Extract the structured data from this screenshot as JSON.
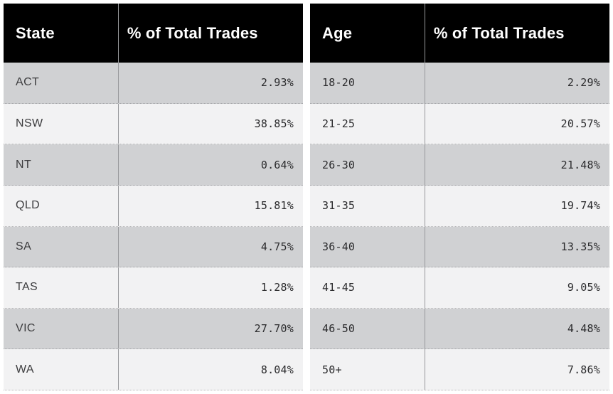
{
  "colors": {
    "header_bg": "#000000",
    "header_text": "#ffffff",
    "row_shade_odd": "#d0d1d3",
    "row_shade_even": "#f2f2f3",
    "column_divider": "#97989b",
    "row_divider_dotted": "#6e6e73",
    "label_text": "#3c3c3e",
    "value_text": "#2b2b2d",
    "page_background": "#ffffff"
  },
  "tables": [
    {
      "name": "state-table",
      "headers": [
        "State",
        "% of Total Trades"
      ],
      "rows": [
        [
          "ACT",
          "2.93%"
        ],
        [
          "NSW",
          "38.85%"
        ],
        [
          "NT",
          "0.64%"
        ],
        [
          "QLD",
          "15.81%"
        ],
        [
          "SA",
          "4.75%"
        ],
        [
          "TAS",
          "1.28%"
        ],
        [
          "VIC",
          "27.70%"
        ],
        [
          "WA",
          "8.04%"
        ]
      ]
    },
    {
      "name": "age-table",
      "headers": [
        "Age",
        "% of Total Trades"
      ],
      "rows": [
        [
          "18-20",
          "2.29%"
        ],
        [
          "21-25",
          "20.57%"
        ],
        [
          "26-30",
          "21.48%"
        ],
        [
          "31-35",
          "19.74%"
        ],
        [
          "36-40",
          "13.35%"
        ],
        [
          "41-45",
          "9.05%"
        ],
        [
          "46-50",
          "4.48%"
        ],
        [
          "50+",
          "7.86%"
        ]
      ]
    }
  ],
  "chart_data": [
    {
      "type": "table",
      "title": "State vs % of Total Trades",
      "columns": [
        "State",
        "% of Total Trades"
      ],
      "categories": [
        "ACT",
        "NSW",
        "NT",
        "QLD",
        "SA",
        "TAS",
        "VIC",
        "WA"
      ],
      "values": [
        2.93,
        38.85,
        0.64,
        15.81,
        4.75,
        1.28,
        27.7,
        8.04
      ],
      "value_unit": "%"
    },
    {
      "type": "table",
      "title": "Age vs % of Total Trades",
      "columns": [
        "Age",
        "% of Total Trades"
      ],
      "categories": [
        "18-20",
        "21-25",
        "26-30",
        "31-35",
        "36-40",
        "41-45",
        "46-50",
        "50+"
      ],
      "values": [
        2.29,
        20.57,
        21.48,
        19.74,
        13.35,
        9.05,
        4.48,
        7.86
      ],
      "value_unit": "%"
    }
  ]
}
